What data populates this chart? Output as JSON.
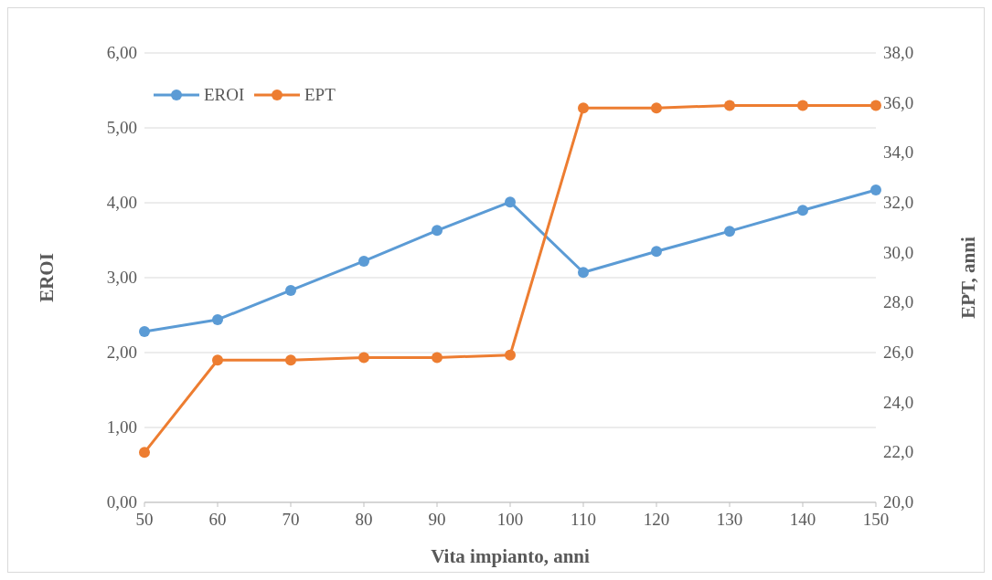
{
  "chart_data": {
    "type": "line",
    "xlabel": "Vita impianto, anni",
    "ylabel": "EROI",
    "y2label": "EPT, anni",
    "x": [
      50,
      60,
      70,
      80,
      90,
      100,
      110,
      120,
      130,
      140,
      150
    ],
    "xlim": [
      50,
      150
    ],
    "xticks": [
      50,
      60,
      70,
      80,
      90,
      100,
      110,
      120,
      130,
      140,
      150
    ],
    "ylim": [
      0,
      6
    ],
    "yticks": [
      {
        "value": 0,
        "label": "0,00"
      },
      {
        "value": 1,
        "label": "1,00"
      },
      {
        "value": 2,
        "label": "2,00"
      },
      {
        "value": 3,
        "label": "3,00"
      },
      {
        "value": 4,
        "label": "4,00"
      },
      {
        "value": 5,
        "label": "5,00"
      },
      {
        "value": 6,
        "label": "6,00"
      }
    ],
    "y2lim": [
      20,
      38
    ],
    "y2ticks": [
      {
        "value": 20,
        "label": "20,0"
      },
      {
        "value": 22,
        "label": "22,0"
      },
      {
        "value": 24,
        "label": "24,0"
      },
      {
        "value": 26,
        "label": "26,0"
      },
      {
        "value": 28,
        "label": "28,0"
      },
      {
        "value": 30,
        "label": "30,0"
      },
      {
        "value": 32,
        "label": "32,0"
      },
      {
        "value": 34,
        "label": "34,0"
      },
      {
        "value": 36,
        "label": "36,0"
      },
      {
        "value": 38,
        "label": "38,0"
      }
    ],
    "series": [
      {
        "name": "EROI",
        "color": "#5b9bd5",
        "values": [
          2.28,
          2.44,
          2.83,
          3.22,
          3.63,
          4.01,
          3.07,
          3.35,
          3.62,
          3.9,
          4.17
        ]
      },
      {
        "name": "EPT",
        "color": "#ed7d31",
        "axis": "y2",
        "values": [
          22.0,
          25.7,
          25.7,
          25.8,
          25.8,
          25.9,
          35.8,
          35.8,
          35.9,
          35.9,
          35.9
        ]
      }
    ],
    "grid": "y",
    "legend": "top left",
    "marker": "circle",
    "line_style": "solid"
  }
}
